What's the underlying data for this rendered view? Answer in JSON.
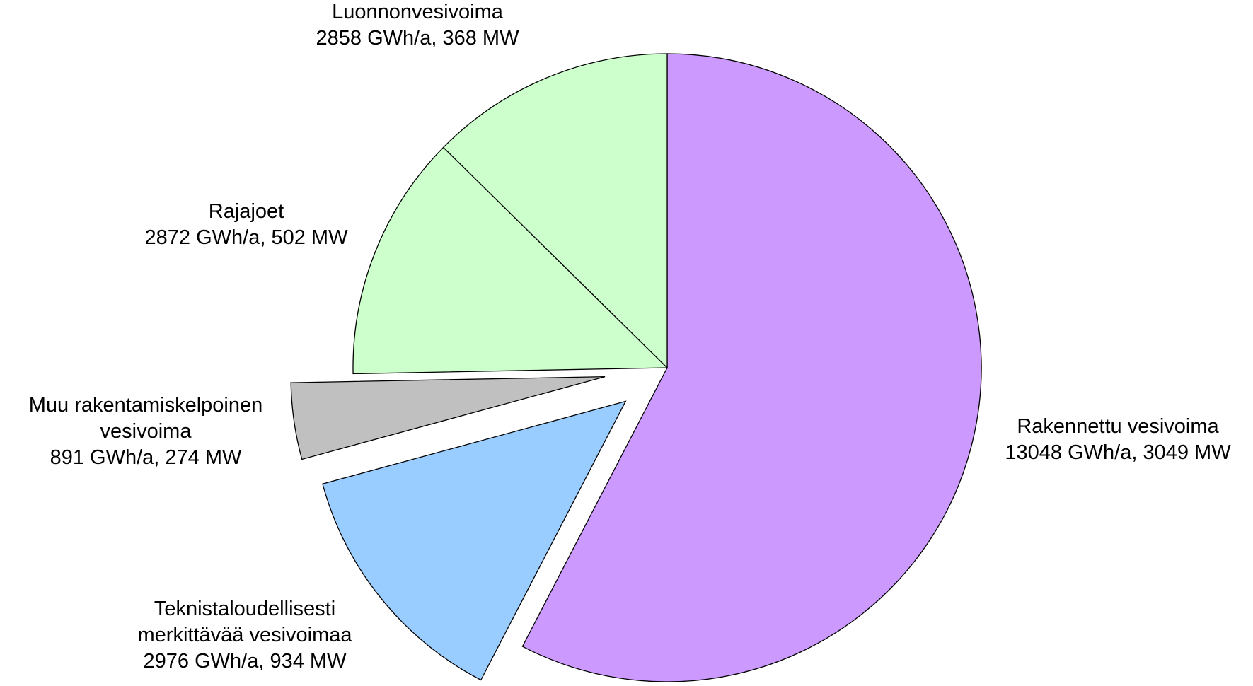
{
  "chart_data": {
    "type": "pie",
    "categories": [
      "Rakennettu vesivoima",
      "Teknistaloudellisesti\nmerkittävää vesivoimaa",
      "Muu rakentamiskelpoinen\nvesivoima",
      "Rajajoet",
      "Luonnonvesivoima"
    ],
    "values": [
      13048,
      2976,
      891,
      2872,
      2858
    ],
    "value_labels": [
      "13048 GWh/a, 3049 MW",
      "2976 GWh/a, 934 MW",
      "891 GWh/a, 274 MW",
      "2872 GWh/a, 502 MW",
      "2858 GWh/a, 368 MW"
    ],
    "colors": [
      "#cc99ff",
      "#99ccff",
      "#c0c0c0",
      "#ccffcc",
      "#ccffcc"
    ],
    "explode": [
      0,
      0.17,
      0.2,
      0,
      0
    ],
    "start_angle": 0,
    "direction": "clockwise"
  }
}
